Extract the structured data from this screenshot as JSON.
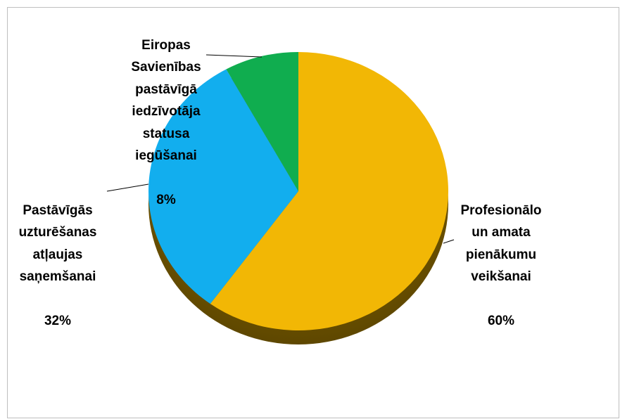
{
  "chart_data": {
    "type": "pie",
    "categories": [
      "Profesionālo\nun amata\npienākumu\nveikšanai",
      "Pastāvīgās\nuzturēšanas\natļaujas\nsaņemšanai",
      "Eiropas\nSavienības\npastāvīgā\niedzīvotāja\nstatusa\niegūšanai"
    ],
    "values": [
      60,
      32,
      8
    ],
    "value_labels": [
      "60%",
      "32%",
      "8%"
    ],
    "colors": [
      "#f2b705",
      "#12aeee",
      "#10ad4f"
    ]
  }
}
